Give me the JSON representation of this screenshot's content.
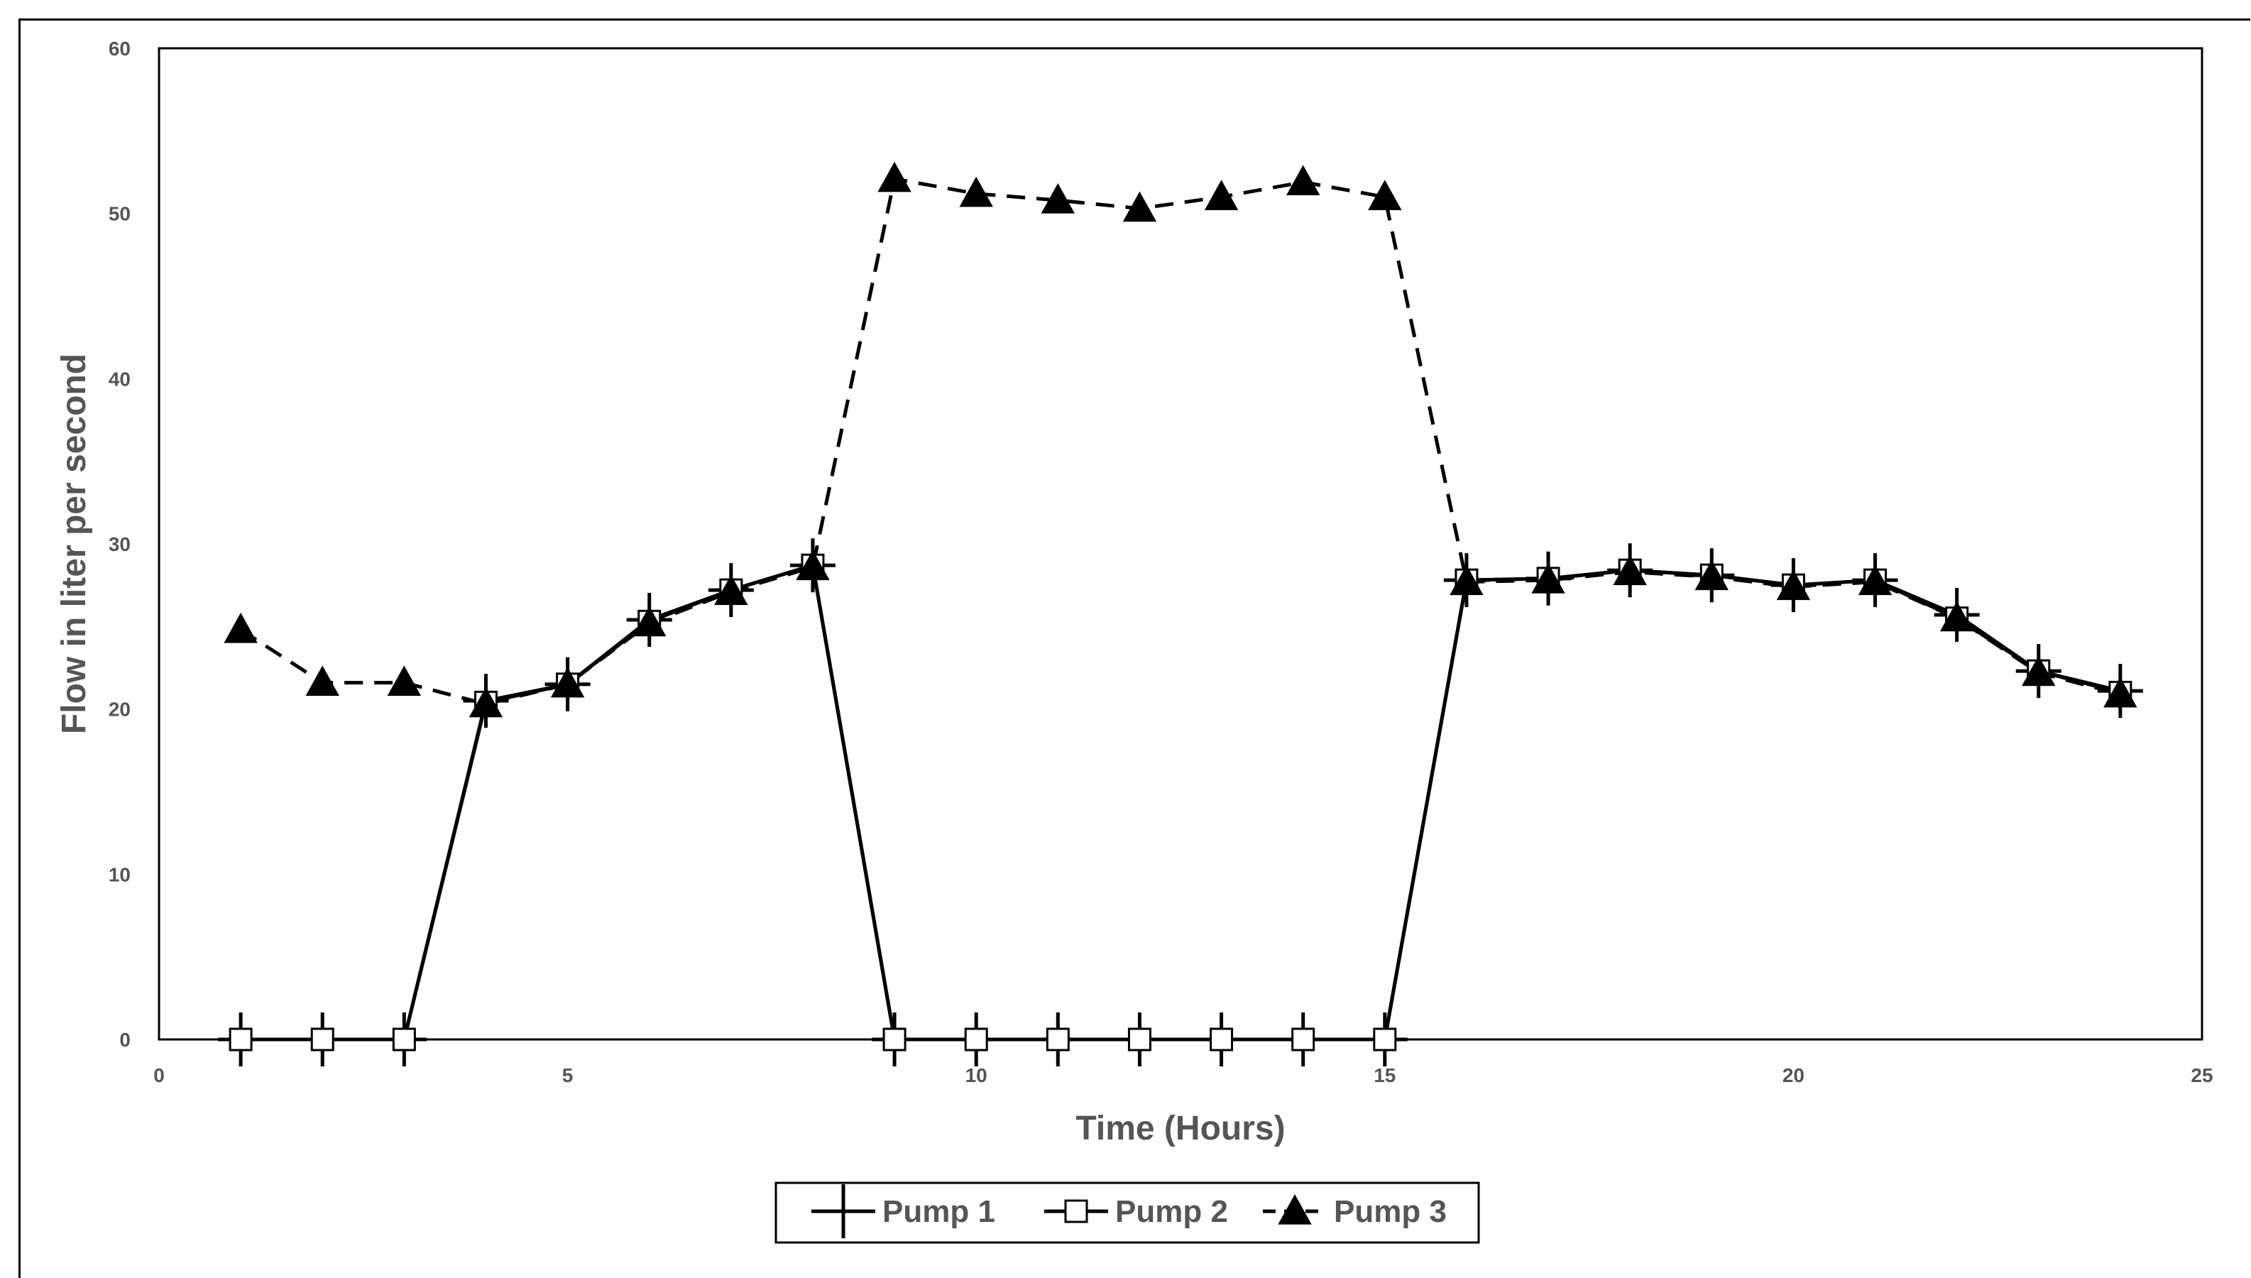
{
  "chart_data": {
    "type": "line",
    "title": "",
    "xlabel": "Time (Hours)",
    "ylabel": "Flow in liter per second",
    "xlim": [
      0,
      25
    ],
    "ylim": [
      0,
      60
    ],
    "xticks": [
      0,
      5,
      10,
      15,
      20,
      25
    ],
    "yticks": [
      0,
      10,
      20,
      30,
      40,
      50,
      60
    ],
    "grid": false,
    "legend_position": "bottom",
    "x": [
      1,
      2,
      3,
      4,
      5,
      6,
      7,
      8,
      9,
      10,
      11,
      12,
      13,
      14,
      15,
      16,
      17,
      18,
      19,
      20,
      21,
      22,
      23,
      24
    ],
    "series": [
      {
        "name": "Pump 1",
        "marker": "plus",
        "line_style": "solid",
        "color": "#000000",
        "values": [
          0,
          0,
          0,
          20.5,
          21.5,
          25.4,
          27.2,
          28.7,
          0,
          0,
          0,
          0,
          0,
          0,
          0,
          27.8,
          27.9,
          28.4,
          28.1,
          27.5,
          27.8,
          25.7,
          22.3,
          21.1
        ]
      },
      {
        "name": "Pump 2",
        "marker": "square",
        "line_style": "solid",
        "color": "#000000",
        "values": [
          0,
          0,
          0,
          20.4,
          21.5,
          25.3,
          27.2,
          28.7,
          0,
          0,
          0,
          0,
          0,
          0,
          0,
          27.8,
          27.9,
          28.4,
          28.1,
          27.5,
          27.8,
          25.5,
          22.3,
          21.0
        ]
      },
      {
        "name": "Pump 3",
        "marker": "triangle",
        "line_style": "dashed",
        "color": "#000000",
        "values": [
          24.8,
          21.6,
          21.6,
          20.3,
          21.5,
          25.2,
          27.1,
          28.6,
          52.1,
          51.2,
          50.8,
          50.3,
          51.0,
          51.9,
          51.0,
          27.7,
          27.8,
          28.3,
          28.0,
          27.4,
          27.7,
          25.5,
          22.2,
          20.9
        ]
      }
    ]
  }
}
